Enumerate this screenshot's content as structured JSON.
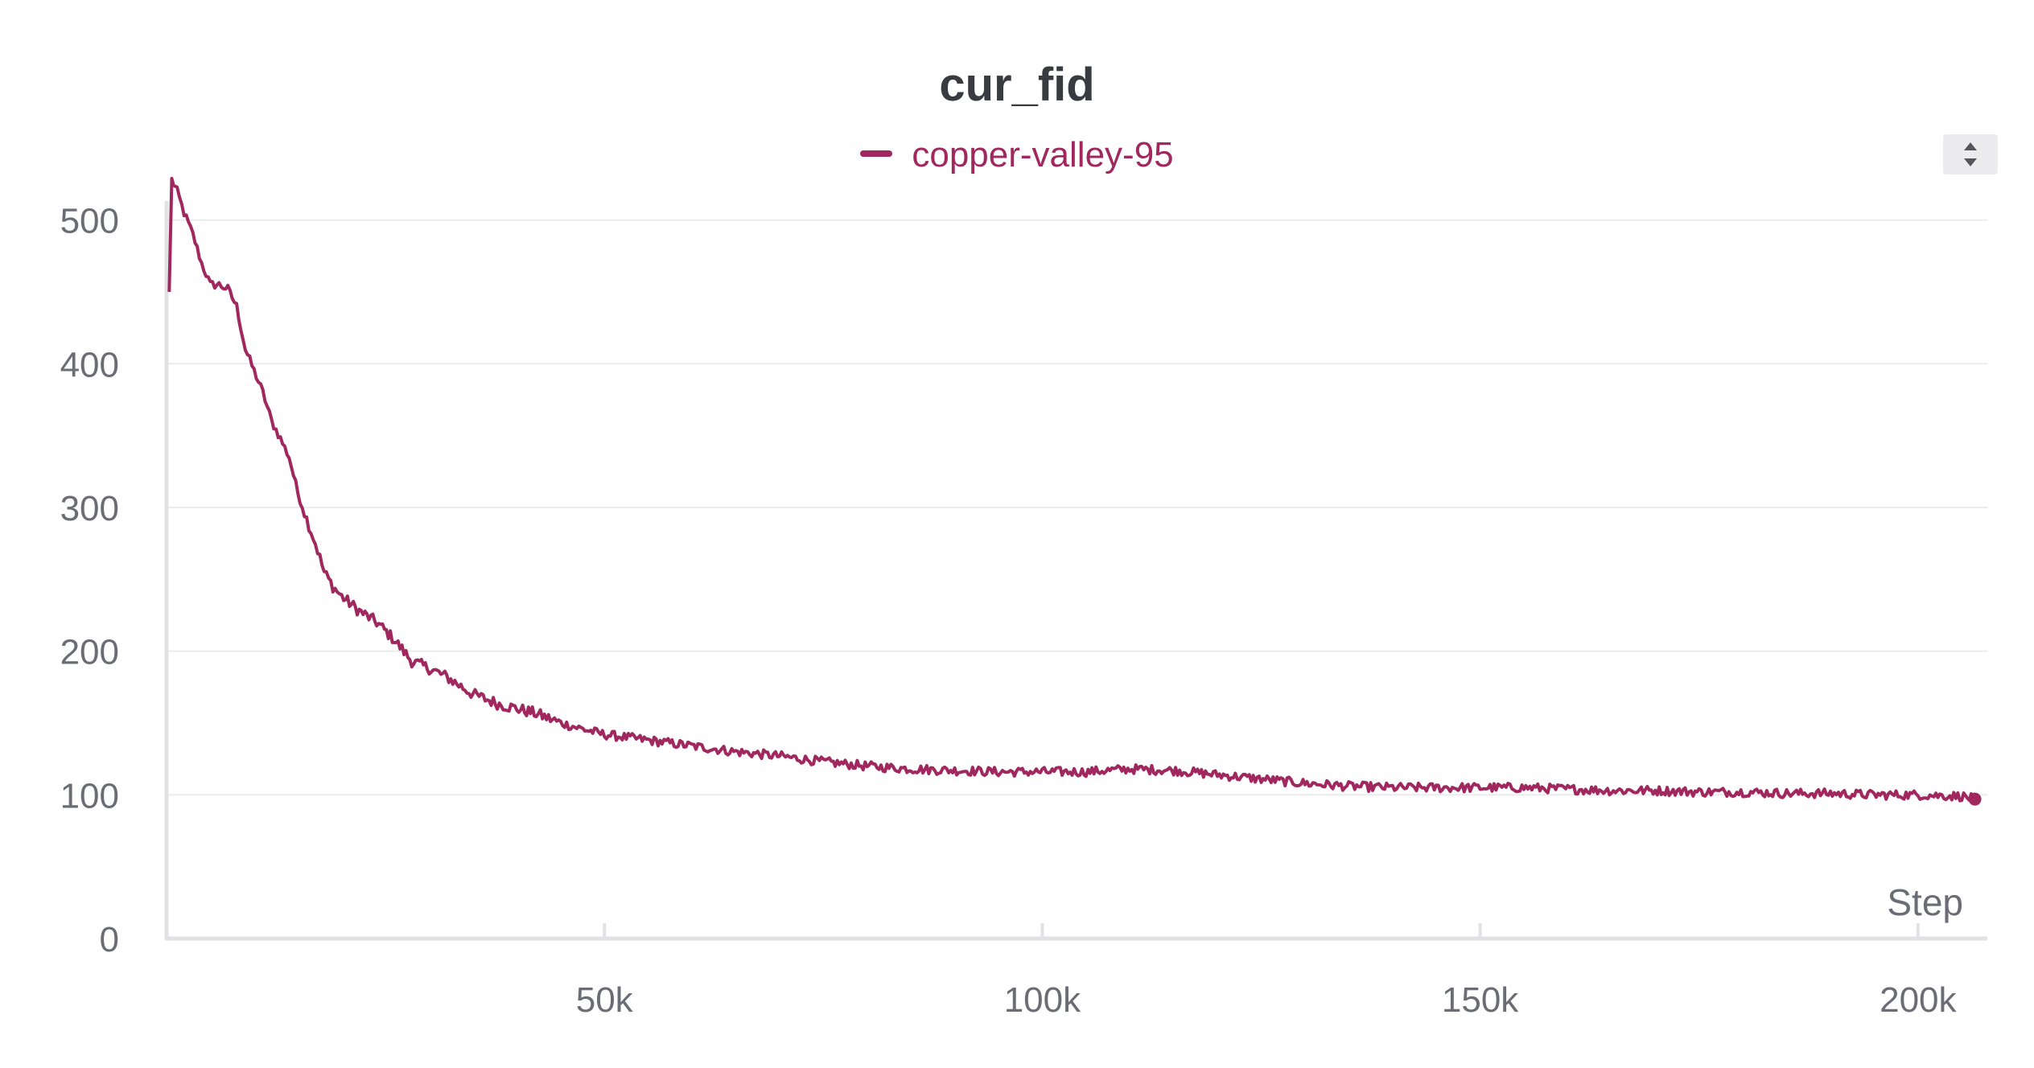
{
  "panel": {
    "title": "cur_fid",
    "legend": [
      {
        "label": "copper-valley-95",
        "color": "#a0285f"
      }
    ],
    "scroll_button": {
      "icons": [
        "chevron-up-icon",
        "chevron-down-icon"
      ]
    }
  },
  "chart_data": {
    "type": "line",
    "title": "cur_fid",
    "xlabel": "Step",
    "ylabel": "",
    "xlim": [
      0,
      207000
    ],
    "ylim": [
      0,
      530
    ],
    "xticks": [
      50000,
      100000,
      150000,
      200000
    ],
    "xtick_labels": [
      "50k",
      "100k",
      "150k",
      "200k"
    ],
    "yticks": [
      0,
      100,
      200,
      300,
      400,
      500
    ],
    "ytick_labels": [
      "0",
      "100",
      "200",
      "300",
      "400",
      "500"
    ],
    "grid": true,
    "legend_position": "top-center",
    "series": [
      {
        "name": "copper-valley-95",
        "color": "#a0285f",
        "x": [
          300,
          600,
          1200,
          2000,
          3000,
          4000,
          5000,
          6000,
          7000,
          8000,
          9000,
          10000,
          11000,
          12000,
          13000,
          14000,
          15000,
          16000,
          17000,
          18000,
          19000,
          20000,
          22000,
          24000,
          26000,
          28000,
          30000,
          32000,
          35000,
          38000,
          40000,
          42000,
          45000,
          48000,
          50000,
          55000,
          60000,
          65000,
          70000,
          75000,
          80000,
          85000,
          90000,
          95000,
          100000,
          105000,
          110000,
          115000,
          120000,
          125000,
          130000,
          135000,
          140000,
          145000,
          150000,
          155000,
          160000,
          165000,
          170000,
          175000,
          180000,
          185000,
          190000,
          195000,
          200000,
          205000,
          206500
        ],
        "y": [
          450,
          528,
          520,
          505,
          490,
          470,
          455,
          455,
          452,
          440,
          410,
          395,
          380,
          360,
          348,
          335,
          310,
          292,
          275,
          255,
          245,
          238,
          228,
          220,
          208,
          193,
          188,
          182,
          170,
          163,
          160,
          157,
          150,
          145,
          142,
          138,
          134,
          130,
          127,
          123,
          120,
          118,
          117,
          116,
          116,
          116,
          118,
          117,
          114,
          111,
          108,
          106,
          105,
          105,
          105,
          105,
          104,
          103,
          103,
          102,
          102,
          101,
          101,
          100,
          100,
          99,
          97
        ]
      }
    ]
  }
}
